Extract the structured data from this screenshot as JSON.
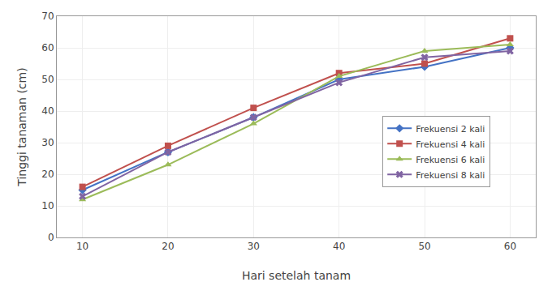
{
  "chart_data": {
    "type": "line",
    "x": [
      10,
      20,
      30,
      40,
      50,
      60
    ],
    "series": [
      {
        "name": "Frekuensi 2 kali",
        "color": "#4472C4",
        "marker": "diamond",
        "values": [
          15,
          27,
          38,
          50,
          54,
          60
        ]
      },
      {
        "name": "Frekuensi 4 kali",
        "color": "#C0504D",
        "marker": "square",
        "values": [
          16,
          29,
          41,
          52,
          55,
          63
        ]
      },
      {
        "name": "Frekuensi 6 kali",
        "color": "#9BBB59",
        "marker": "triangle",
        "values": [
          12,
          23,
          36,
          51,
          59,
          61
        ]
      },
      {
        "name": "Frekuensi 8 kali",
        "color": "#8064A2",
        "marker": "x",
        "values": [
          13,
          27,
          38,
          49,
          57,
          59
        ]
      }
    ],
    "xlabel": "Hari setelah tanam",
    "ylabel": "Tinggi tanaman (cm)",
    "xlim": [
      7,
      63
    ],
    "xticks": [
      10,
      20,
      30,
      40,
      50,
      60
    ],
    "ylim": [
      0,
      70
    ],
    "yticks": [
      0,
      10,
      20,
      30,
      40,
      50,
      60,
      70
    ],
    "grid": true,
    "legend": "right"
  }
}
